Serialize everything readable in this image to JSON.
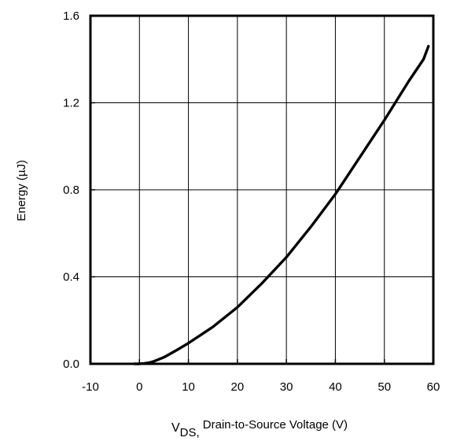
{
  "chart_data": {
    "type": "line",
    "xlabel_main": "V",
    "xlabel_sub": "DS,",
    "xlabel_rest": " Drain-to-Source Voltage (V)",
    "ylabel": "Energy (µJ)",
    "xlim": [
      -10,
      60
    ],
    "ylim": [
      0,
      1.6
    ],
    "x_ticks": [
      -10,
      0,
      10,
      20,
      30,
      40,
      50,
      60
    ],
    "x_tick_labels": [
      "-10",
      "0",
      "10",
      "20",
      "30",
      "40",
      "50",
      "60"
    ],
    "y_ticks": [
      0,
      0.4,
      0.8,
      1.2,
      1.6
    ],
    "y_tick_labels": [
      "0.0",
      "0.4",
      "0.8",
      "1.2",
      "1.6"
    ],
    "grid": true,
    "series": [
      {
        "x": [
          -1,
          0,
          1,
          2,
          3,
          5,
          8,
          10,
          15,
          20,
          25,
          30,
          35,
          40,
          45,
          50,
          55,
          58,
          59
        ],
        "y": [
          0,
          0,
          0.002,
          0.005,
          0.012,
          0.03,
          0.068,
          0.095,
          0.17,
          0.26,
          0.37,
          0.49,
          0.63,
          0.78,
          0.95,
          1.12,
          1.3,
          1.4,
          1.46
        ]
      }
    ]
  }
}
